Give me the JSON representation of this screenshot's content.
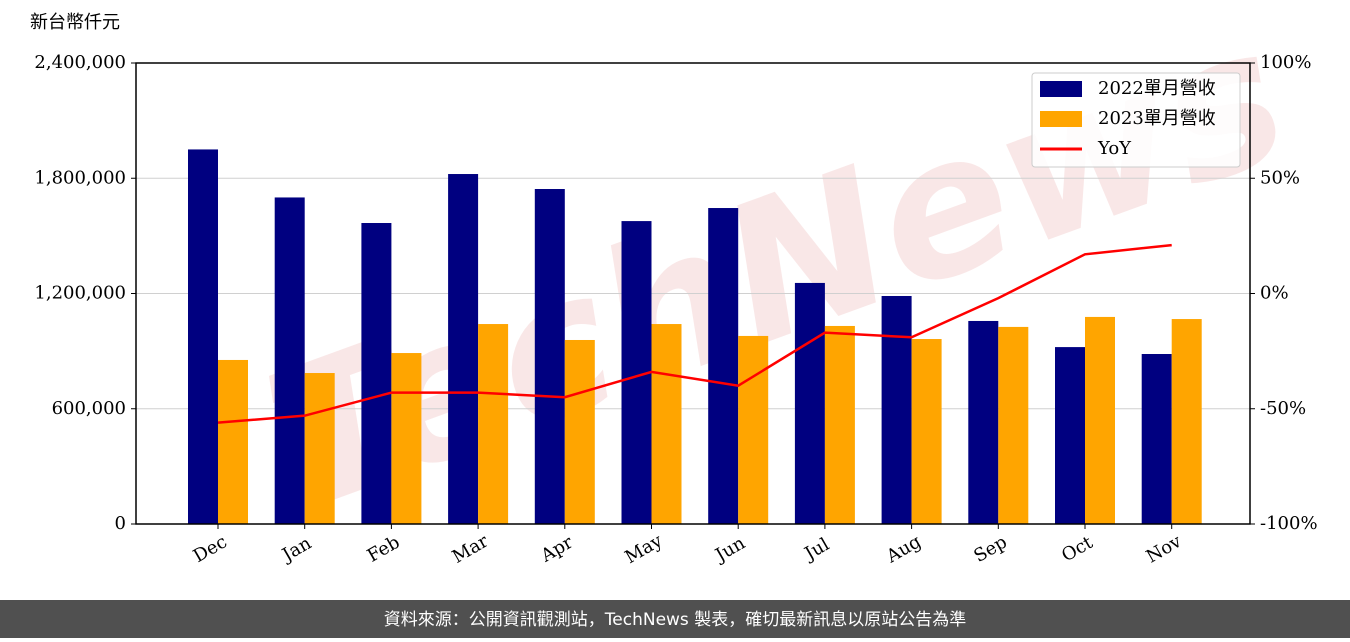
{
  "chart_data": {
    "type": "bar",
    "y_label": "新台幣仟元",
    "watermark": "TechNews",
    "footer": "資料來源：公開資訊觀測站，TechNews 製表，確切最新訊息以原站公告為準",
    "categories": [
      "Dec",
      "Jan",
      "Feb",
      "Mar",
      "Apr",
      "May",
      "Jun",
      "Jul",
      "Aug",
      "Sep",
      "Oct",
      "Nov"
    ],
    "series": [
      {
        "name": "2022單月營收",
        "color": "#000080",
        "values": [
          1950000,
          1700000,
          1567000,
          1822000,
          1744000,
          1577000,
          1645000,
          1255000,
          1187000,
          1057000,
          921000,
          885000
        ]
      },
      {
        "name": "2023單月營收",
        "color": "#ffa500",
        "values": [
          854000,
          786000,
          890000,
          1041000,
          958000,
          1041000,
          979000,
          1031000,
          963000,
          1026000,
          1078000,
          1067000
        ]
      },
      {
        "name": "YoY",
        "type": "line",
        "axis": "y2",
        "color": "#ff0000",
        "values": [
          -56,
          -53,
          -43,
          -43,
          -45,
          -34,
          -40,
          -17,
          -19,
          -2,
          17,
          21
        ]
      }
    ],
    "ylim": [
      0,
      2400000
    ],
    "yticks": [
      0,
      {
        "value": 600000,
        "label": "600,000"
      },
      {
        "value": 1200000,
        "label": "1,200,000"
      },
      {
        "value": 1800000,
        "label": "1,800,000"
      },
      {
        "value": 2400000,
        "label": "2,400,000"
      }
    ],
    "y2lim": [
      -100,
      100
    ],
    "y2ticks": [
      {
        "value": -100,
        "label": "-100%"
      },
      {
        "value": -50,
        "label": "-50%"
      },
      {
        "value": 0,
        "label": "0%"
      },
      {
        "value": 50,
        "label": "50%"
      },
      {
        "value": 100,
        "label": "100%"
      }
    ],
    "grid": true,
    "legend": "upper right"
  }
}
